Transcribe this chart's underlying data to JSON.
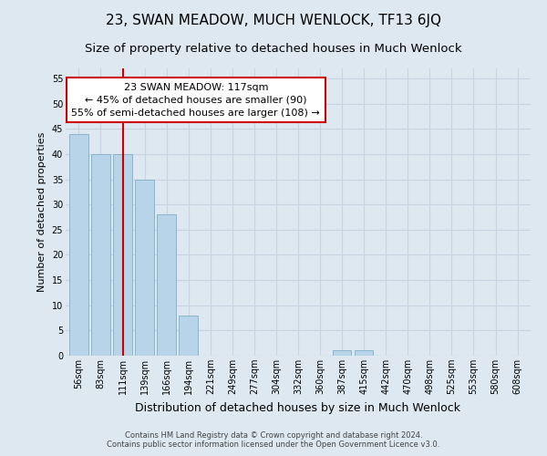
{
  "title": "23, SWAN MEADOW, MUCH WENLOCK, TF13 6JQ",
  "subtitle": "Size of property relative to detached houses in Much Wenlock",
  "xlabel": "Distribution of detached houses by size in Much Wenlock",
  "ylabel": "Number of detached properties",
  "bar_labels": [
    "56sqm",
    "83sqm",
    "111sqm",
    "139sqm",
    "166sqm",
    "194sqm",
    "221sqm",
    "249sqm",
    "277sqm",
    "304sqm",
    "332sqm",
    "360sqm",
    "387sqm",
    "415sqm",
    "442sqm",
    "470sqm",
    "498sqm",
    "525sqm",
    "553sqm",
    "580sqm",
    "608sqm"
  ],
  "bar_values": [
    44,
    40,
    40,
    35,
    28,
    8,
    0,
    0,
    0,
    0,
    0,
    0,
    1,
    1,
    0,
    0,
    0,
    0,
    0,
    0,
    0
  ],
  "bar_color": "#b8d4e8",
  "bar_edge_color": "#88b4cc",
  "redline_index": 2,
  "redline_color": "#cc0000",
  "ylim": [
    0,
    57
  ],
  "yticks": [
    0,
    5,
    10,
    15,
    20,
    25,
    30,
    35,
    40,
    45,
    50,
    55
  ],
  "annotation_title": "23 SWAN MEADOW: 117sqm",
  "annotation_line1": "← 45% of detached houses are smaller (90)",
  "annotation_line2": "55% of semi-detached houses are larger (108) →",
  "annotation_box_color": "#ffffff",
  "annotation_box_edge_color": "#cc0000",
  "grid_color": "#c8d4e4",
  "background_color": "#dde8f0",
  "plot_bg_color": "#dde8f0",
  "footer_line1": "Contains HM Land Registry data © Crown copyright and database right 2024.",
  "footer_line2": "Contains public sector information licensed under the Open Government Licence v3.0.",
  "title_fontsize": 11,
  "subtitle_fontsize": 9.5,
  "xlabel_fontsize": 9,
  "ylabel_fontsize": 8,
  "tick_fontsize": 7,
  "annotation_fontsize": 8,
  "footer_fontsize": 6
}
